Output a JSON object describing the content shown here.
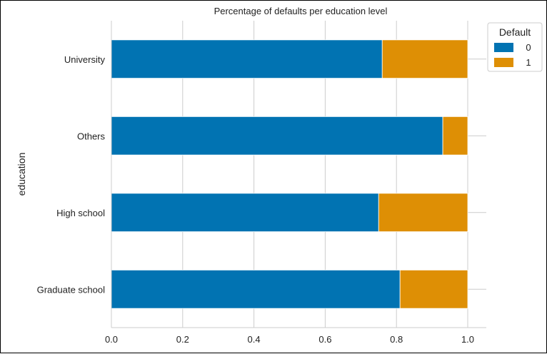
{
  "chart_data": {
    "type": "bar",
    "orientation": "horizontal",
    "stacked": true,
    "title": "Percentage of defaults per education level",
    "xlabel": "",
    "ylabel": "education",
    "categories": [
      "Graduate school",
      "High school",
      "Others",
      "University"
    ],
    "series": [
      {
        "name": "0",
        "color": "#0173b2",
        "values": [
          0.81,
          0.75,
          0.93,
          0.76
        ]
      },
      {
        "name": "1",
        "color": "#de8f05",
        "values": [
          0.19,
          0.25,
          0.07,
          0.24
        ]
      }
    ],
    "xlim": [
      0.0,
      1.0
    ],
    "xticks": [
      "0.0",
      "0.2",
      "0.4",
      "0.6",
      "0.8",
      "1.0"
    ],
    "grid": true,
    "legend": {
      "title": "Default",
      "position": "top-right"
    }
  }
}
